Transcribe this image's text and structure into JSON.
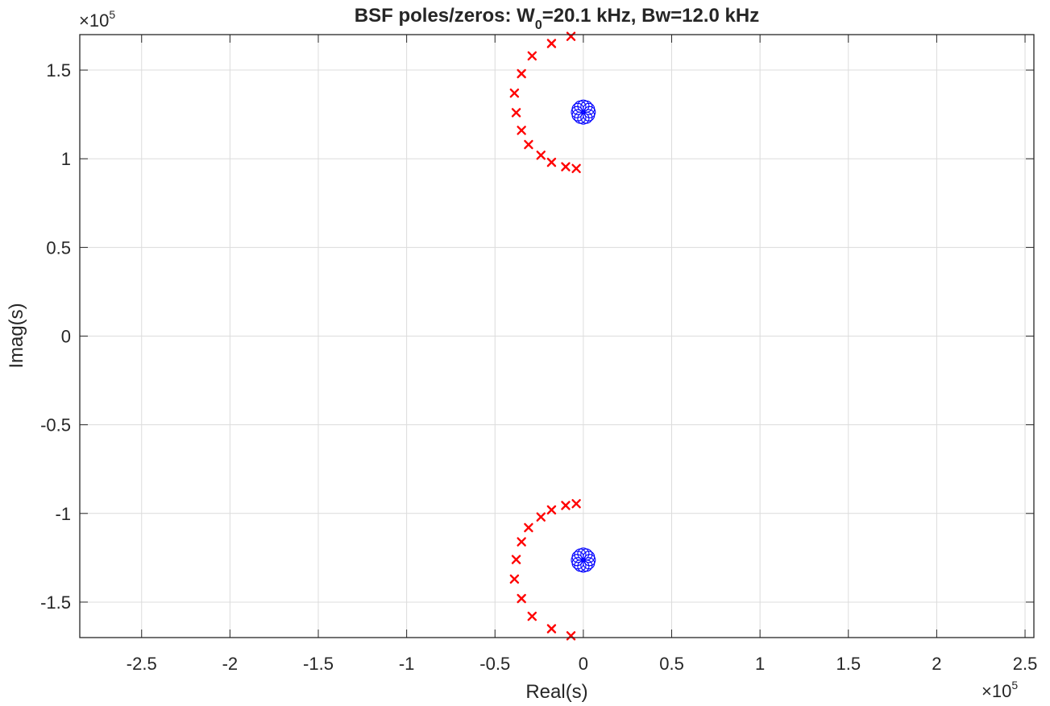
{
  "chart_data": {
    "type": "scatter",
    "title": {
      "prefix": "BSF  poles/zeros:  W",
      "subscript": "0",
      "suffix": "=20.1  kHz,  Bw=12.0  kHz"
    },
    "xlabel": "Real(s)",
    "ylabel": "Imag(s)",
    "x_multiplier": {
      "base": "×10",
      "exponent": "5"
    },
    "y_multiplier": {
      "base": "×10",
      "exponent": "5"
    },
    "xlim": [
      -2.85,
      2.55
    ],
    "ylim": [
      -1.7,
      1.7
    ],
    "x_scale_factor": 100000,
    "y_scale_factor": 100000,
    "x_ticks": [
      -2.5,
      -2,
      -1.5,
      -1,
      -0.5,
      0,
      0.5,
      1,
      1.5,
      2,
      2.5
    ],
    "x_tick_labels": [
      "-2.5",
      "-2",
      "-1.5",
      "-1",
      "-0.5",
      "0",
      "0.5",
      "1",
      "1.5",
      "2",
      "2.5"
    ],
    "y_ticks": [
      -1.5,
      -1,
      -0.5,
      0,
      0.5,
      1,
      1.5
    ],
    "y_tick_labels": [
      "-1.5",
      "-1",
      "-0.5",
      "0",
      "0.5",
      "1",
      "1.5"
    ],
    "grid": true,
    "box": true,
    "colors": {
      "poles": "#ff0000",
      "zeros": "#0000ff",
      "grid": "#dcdcdc",
      "axes": "#262626"
    },
    "series": [
      {
        "marker": "x",
        "color": "#ff0000",
        "points": [
          {
            "x": -0.07,
            "y": 1.69
          },
          {
            "x": -0.18,
            "y": 1.65
          },
          {
            "x": -0.29,
            "y": 1.58
          },
          {
            "x": -0.35,
            "y": 1.48
          },
          {
            "x": -0.39,
            "y": 1.37
          },
          {
            "x": -0.38,
            "y": 1.26
          },
          {
            "x": -0.35,
            "y": 1.16
          },
          {
            "x": -0.31,
            "y": 1.08
          },
          {
            "x": -0.24,
            "y": 1.02
          },
          {
            "x": -0.18,
            "y": 0.98
          },
          {
            "x": -0.1,
            "y": 0.955
          },
          {
            "x": -0.04,
            "y": 0.945
          },
          {
            "x": -0.07,
            "y": -1.69
          },
          {
            "x": -0.18,
            "y": -1.65
          },
          {
            "x": -0.29,
            "y": -1.58
          },
          {
            "x": -0.35,
            "y": -1.48
          },
          {
            "x": -0.39,
            "y": -1.37
          },
          {
            "x": -0.38,
            "y": -1.26
          },
          {
            "x": -0.35,
            "y": -1.16
          },
          {
            "x": -0.31,
            "y": -1.08
          },
          {
            "x": -0.24,
            "y": -1.02
          },
          {
            "x": -0.18,
            "y": -0.98
          },
          {
            "x": -0.1,
            "y": -0.955
          },
          {
            "x": -0.04,
            "y": -0.945
          }
        ]
      },
      {
        "marker": "o",
        "color": "#0000ff",
        "center_points": [
          {
            "x": 0,
            "y": 1.263
          },
          {
            "x": 0,
            "y": -1.263
          }
        ],
        "ring_count": 12,
        "ring_offset": 0.036
      }
    ]
  }
}
